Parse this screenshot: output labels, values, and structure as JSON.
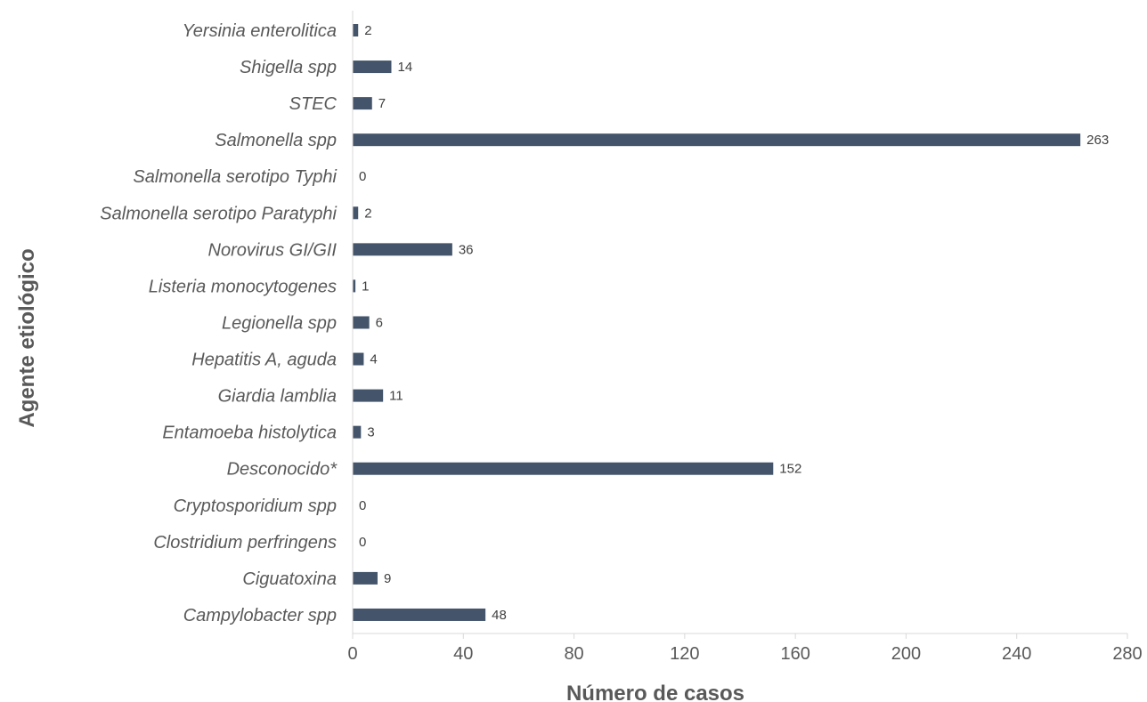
{
  "chart_data": {
    "type": "bar",
    "orientation": "horizontal",
    "title": "",
    "xlabel": "Número de casos",
    "ylabel": "Agente etiológico",
    "xlim": [
      0,
      280
    ],
    "xticks": [
      0,
      40,
      80,
      120,
      160,
      200,
      240,
      280
    ],
    "grid": false,
    "bar_color": "#44546A",
    "categories": [
      "Yersinia enterolitica",
      "Shigella spp",
      "STEC",
      "Salmonella spp",
      "Salmonella serotipo Typhi",
      "Salmonella serotipo Paratyphi",
      "Norovirus GI/GII",
      "Listeria monocytogenes",
      "Legionella spp",
      "Hepatitis A, aguda",
      "Giardia lamblia",
      "Entamoeba histolytica",
      "Desconocido*",
      "Cryptosporidium spp",
      "Clostridium perfringens",
      "Ciguatoxina",
      "Campylobacter spp"
    ],
    "values": [
      2,
      14,
      7,
      263,
      0,
      2,
      36,
      1,
      6,
      4,
      11,
      3,
      152,
      0,
      0,
      9,
      48
    ]
  }
}
